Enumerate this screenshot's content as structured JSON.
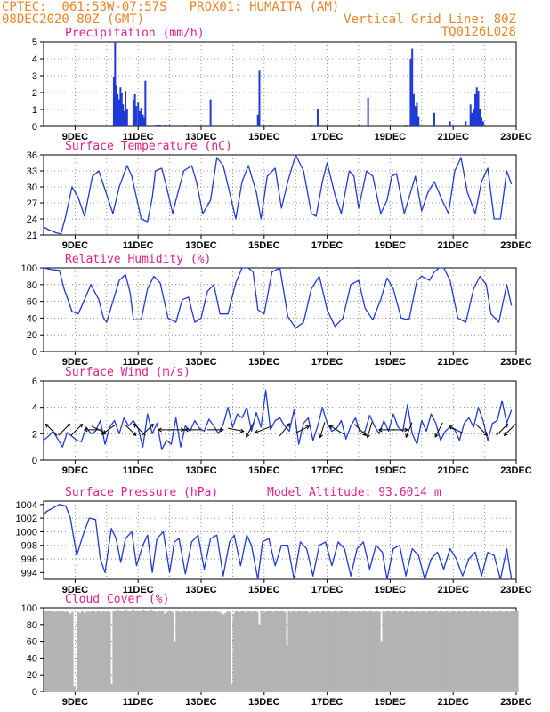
{
  "header": {
    "line1_left": "CPTEC:  061:53W-07:57S   PROX01: HUMAITA (AM)",
    "line2_left": "08DEC2020 80Z (GMT)",
    "line2_right": "Vertical Grid Line: 80Z",
    "line3_right": "TQ0126L028"
  },
  "colors": {
    "header": "#e8862a",
    "title": "#e0208a",
    "line": "#1f3ad6",
    "cloud": "#b3b3b3"
  },
  "x_tick_labels": [
    "9DEC",
    "11DEC",
    "13DEC",
    "15DEC",
    "17DEC",
    "19DEC",
    "21DEC",
    "23DEC"
  ],
  "chart_data": [
    {
      "type": "bar",
      "title": "Precipitation (mm/h)",
      "ylim": [
        0,
        5
      ],
      "yticks": [
        "0",
        "1",
        "2",
        "3",
        "4",
        "5"
      ],
      "x_unit": "day",
      "x": [
        10.23,
        10.27,
        10.31,
        10.35,
        10.39,
        10.44,
        10.48,
        10.52,
        10.56,
        10.6,
        10.65,
        10.85,
        10.9,
        10.94,
        11.0,
        11.05,
        11.1,
        11.15,
        11.19,
        11.23,
        11.6,
        11.65,
        11.7,
        11.85,
        12.0,
        12.5,
        12.9,
        13.3,
        14.2,
        14.8,
        14.85,
        15.2,
        16.5,
        16.7,
        18.0,
        18.3,
        19.5,
        19.65,
        19.7,
        19.75,
        19.8,
        19.85,
        19.9,
        20.4,
        20.9,
        21.4,
        21.55,
        21.6,
        21.65,
        21.7,
        21.75,
        21.8,
        21.85,
        21.9,
        21.95
      ],
      "values": [
        2.9,
        5.0,
        2.4,
        1.9,
        1.6,
        2.3,
        2.0,
        1.3,
        0.9,
        2.1,
        1.0,
        1.6,
        1.9,
        1.2,
        1.4,
        0.9,
        1.1,
        0.7,
        0.5,
        2.7,
        0.08,
        0.1,
        0.08,
        0.05,
        0.05,
        0.05,
        0.08,
        1.6,
        0.1,
        0.7,
        3.3,
        0.1,
        0.08,
        1.0,
        0.05,
        1.7,
        0.1,
        4.0,
        4.6,
        1.9,
        1.2,
        1.4,
        0.6,
        0.8,
        0.3,
        0.3,
        1.3,
        0.8,
        1.0,
        1.9,
        2.3,
        2.1,
        1.0,
        0.5,
        0.3
      ]
    },
    {
      "type": "line",
      "title": "Surface Temperature (nC)",
      "ylim": [
        21,
        36
      ],
      "yticks": [
        "21",
        "24",
        "27",
        "30",
        "33",
        "36"
      ],
      "x": [
        8.0,
        8.15,
        8.4,
        8.55,
        8.7,
        8.9,
        9.1,
        9.3,
        9.55,
        9.75,
        9.95,
        10.2,
        10.4,
        10.65,
        10.8,
        11.1,
        11.3,
        11.45,
        11.55,
        11.75,
        11.9,
        12.1,
        12.2,
        12.45,
        12.7,
        12.85,
        13.05,
        13.3,
        13.5,
        13.7,
        13.9,
        14.1,
        14.3,
        14.5,
        14.75,
        14.9,
        15.1,
        15.35,
        15.55,
        15.75,
        16.0,
        16.25,
        16.5,
        16.65,
        16.85,
        17.0,
        17.25,
        17.45,
        17.7,
        17.85,
        18.0,
        18.25,
        18.45,
        18.7,
        18.9,
        19.05,
        19.2,
        19.45,
        19.65,
        19.8,
        20.0,
        20.2,
        20.4,
        20.65,
        20.85,
        21.05,
        21.25,
        21.45,
        21.7,
        21.9,
        22.1,
        22.3,
        22.5,
        22.7,
        22.85
      ],
      "values": [
        22.5,
        22.0,
        21.4,
        21.2,
        24.5,
        30.0,
        28.0,
        24.5,
        32.0,
        33.0,
        29.5,
        25.0,
        30.0,
        34.0,
        32.0,
        24.0,
        23.5,
        28.0,
        33.0,
        33.5,
        30.0,
        25.0,
        27.5,
        33.0,
        34.0,
        31.0,
        25.0,
        27.5,
        35.5,
        34.0,
        29.0,
        24.0,
        31.0,
        34.0,
        29.0,
        24.0,
        32.0,
        33.5,
        26.0,
        31.0,
        36.0,
        33.0,
        25.0,
        24.5,
        31.0,
        34.5,
        28.5,
        25.0,
        33.0,
        32.0,
        26.0,
        33.0,
        32.0,
        25.0,
        27.5,
        32.0,
        32.5,
        25.0,
        29.0,
        32.0,
        25.5,
        29.0,
        31.0,
        27.5,
        25.0,
        33.0,
        35.5,
        29.0,
        25.0,
        31.0,
        33.5,
        24.0,
        24.0,
        33.0,
        30.5
      ]
    },
    {
      "type": "line",
      "title": "Relative Humidity (%)",
      "ylim": [
        0,
        100
      ],
      "yticks": [
        "0",
        "20",
        "40",
        "60",
        "80",
        "100"
      ],
      "x": [
        8.0,
        8.25,
        8.5,
        8.65,
        8.9,
        9.1,
        9.3,
        9.5,
        9.75,
        9.9,
        10.0,
        10.2,
        10.4,
        10.6,
        10.75,
        10.85,
        11.1,
        11.3,
        11.5,
        11.7,
        11.95,
        12.2,
        12.4,
        12.6,
        12.8,
        13.0,
        13.2,
        13.4,
        13.6,
        13.85,
        14.1,
        14.3,
        14.5,
        14.65,
        14.8,
        15.0,
        15.25,
        15.5,
        15.75,
        16.0,
        16.25,
        16.5,
        16.75,
        17.0,
        17.25,
        17.5,
        17.75,
        18.0,
        18.2,
        18.45,
        18.7,
        18.9,
        19.1,
        19.35,
        19.6,
        19.85,
        20.0,
        20.25,
        20.4,
        20.55,
        20.7,
        20.9,
        21.15,
        21.4,
        21.65,
        21.85,
        22.05,
        22.2,
        22.45,
        22.7,
        22.85
      ],
      "values": [
        100,
        98,
        97,
        75,
        48,
        45,
        62,
        80,
        62,
        40,
        35,
        60,
        85,
        92,
        70,
        38,
        38,
        75,
        90,
        82,
        40,
        35,
        62,
        65,
        35,
        40,
        72,
        80,
        45,
        45,
        82,
        100,
        100,
        95,
        50,
        45,
        95,
        100,
        42,
        28,
        35,
        75,
        90,
        50,
        30,
        40,
        80,
        85,
        52,
        38,
        62,
        88,
        75,
        40,
        38,
        85,
        90,
        85,
        95,
        100,
        100,
        85,
        40,
        35,
        75,
        90,
        80,
        45,
        35,
        80,
        55
      ]
    },
    {
      "type": "line",
      "title": "Surface Wind (m/s)",
      "ylim": [
        0,
        6
      ],
      "yticks": [
        "0",
        "2",
        "4",
        "6"
      ],
      "x": [
        8.0,
        8.15,
        8.3,
        8.45,
        8.6,
        8.75,
        8.9,
        9.05,
        9.2,
        9.35,
        9.5,
        9.65,
        9.8,
        9.95,
        10.1,
        10.25,
        10.4,
        10.55,
        10.7,
        10.85,
        11.0,
        11.15,
        11.3,
        11.45,
        11.6,
        11.75,
        11.9,
        12.05,
        12.2,
        12.35,
        12.5,
        12.65,
        12.8,
        12.95,
        13.1,
        13.25,
        13.4,
        13.55,
        13.7,
        13.85,
        14.0,
        14.15,
        14.3,
        14.45,
        14.6,
        14.75,
        14.9,
        15.05,
        15.2,
        15.35,
        15.5,
        15.65,
        15.8,
        15.95,
        16.1,
        16.25,
        16.4,
        16.55,
        16.7,
        16.85,
        17.0,
        17.15,
        17.3,
        17.45,
        17.6,
        17.75,
        17.9,
        18.05,
        18.2,
        18.35,
        18.5,
        18.65,
        18.8,
        18.95,
        19.1,
        19.25,
        19.4,
        19.55,
        19.7,
        19.85,
        20.0,
        20.15,
        20.3,
        20.45,
        20.6,
        20.75,
        20.9,
        21.05,
        21.2,
        21.35,
        21.5,
        21.65,
        21.8,
        21.95,
        22.1,
        22.25,
        22.4,
        22.55,
        22.7,
        22.85
      ],
      "values": [
        1.5,
        1.8,
        2.2,
        1.6,
        1.0,
        2.1,
        1.8,
        1.5,
        1.4,
        2.5,
        2.0,
        2.2,
        3.0,
        1.2,
        2.5,
        3.0,
        2.0,
        3.2,
        2.6,
        3.0,
        2.4,
        1.0,
        3.5,
        2.0,
        2.8,
        0.8,
        1.5,
        1.2,
        3.2,
        1.0,
        2.6,
        2.2,
        3.0,
        2.4,
        2.2,
        3.1,
        2.6,
        2.0,
        2.7,
        4.0,
        2.5,
        3.5,
        3.2,
        4.0,
        2.2,
        3.6,
        2.5,
        5.3,
        2.3,
        3.0,
        3.2,
        2.6,
        2.2,
        3.8,
        1.2,
        2.8,
        3.2,
        1.5,
        2.6,
        4.0,
        2.8,
        2.2,
        2.4,
        3.0,
        1.6,
        2.6,
        3.2,
        2.0,
        2.2,
        3.4,
        2.6,
        2.0,
        3.0,
        2.2,
        3.5,
        2.5,
        2.2,
        4.2,
        2.0,
        1.2,
        3.0,
        2.2,
        3.5,
        2.8,
        1.5,
        2.2,
        2.5,
        2.3,
        1.5,
        2.8,
        3.2,
        2.5,
        4.0,
        3.0,
        1.5,
        2.8,
        3.0,
        4.5,
        2.8,
        3.8
      ],
      "arrows": [
        {
          "x": 8.25,
          "dx": -1,
          "dy": 1
        },
        {
          "x": 8.65,
          "dx": 0.6,
          "dy": 0.6
        },
        {
          "x": 9.05,
          "dx": 1,
          "dy": 1
        },
        {
          "x": 9.55,
          "dx": -1,
          "dy": 0
        },
        {
          "x": 9.75,
          "dx": 1,
          "dy": -0.5
        },
        {
          "x": 10.05,
          "dx": -1,
          "dy": -0.7
        },
        {
          "x": 10.75,
          "dx": 1,
          "dy": -1
        },
        {
          "x": 11.05,
          "dx": -1,
          "dy": 1
        },
        {
          "x": 11.3,
          "dx": 1,
          "dy": 1
        },
        {
          "x": 11.9,
          "dx": -1,
          "dy": 0
        },
        {
          "x": 12.2,
          "dx": 1,
          "dy": 0
        },
        {
          "x": 12.75,
          "dx": -1,
          "dy": 0
        },
        {
          "x": 13.45,
          "dx": 1,
          "dy": 0
        },
        {
          "x": 14.1,
          "dx": 1,
          "dy": -0.2
        },
        {
          "x": 14.55,
          "dx": -0.5,
          "dy": -1
        },
        {
          "x": 14.95,
          "dx": -1,
          "dy": -0.4
        },
        {
          "x": 15.65,
          "dx": 0.8,
          "dy": 1
        },
        {
          "x": 16.2,
          "dx": 1,
          "dy": 0.5
        },
        {
          "x": 16.85,
          "dx": -0.3,
          "dy": -1
        },
        {
          "x": 17.3,
          "dx": -0.8,
          "dy": 0.5
        },
        {
          "x": 18.05,
          "dx": 1,
          "dy": -1
        },
        {
          "x": 18.35,
          "dx": -0.3,
          "dy": -1
        },
        {
          "x": 18.9,
          "dx": -1,
          "dy": 0
        },
        {
          "x": 19.3,
          "dx": 1,
          "dy": 0
        },
        {
          "x": 19.6,
          "dx": -0.4,
          "dy": -1
        },
        {
          "x": 20.55,
          "dx": -0.5,
          "dy": -1
        },
        {
          "x": 21.1,
          "dx": -1,
          "dy": 0.5
        },
        {
          "x": 21.9,
          "dx": 1,
          "dy": -1
        },
        {
          "x": 22.55,
          "dx": 1,
          "dy": 1
        },
        {
          "x": 22.8,
          "dx": -1,
          "dy": -1
        }
      ]
    },
    {
      "type": "line",
      "title": "Surface Pressure (hPa)",
      "subtitle": "Model Altitude: 93.6014 m",
      "ylim": [
        993,
        1004.5
      ],
      "yticks": [
        "994",
        "996",
        "998",
        "1000",
        "1002",
        "1004"
      ],
      "x": [
        8.0,
        8.1,
        8.3,
        8.5,
        8.7,
        8.85,
        9.05,
        9.25,
        9.45,
        9.65,
        9.8,
        9.95,
        10.15,
        10.3,
        10.45,
        10.6,
        10.8,
        10.95,
        11.15,
        11.3,
        11.45,
        11.6,
        11.8,
        12.0,
        12.15,
        12.3,
        12.5,
        12.7,
        12.9,
        13.1,
        13.3,
        13.5,
        13.7,
        13.9,
        14.05,
        14.25,
        14.45,
        14.6,
        14.8,
        14.95,
        15.15,
        15.35,
        15.55,
        15.75,
        15.95,
        16.15,
        16.35,
        16.55,
        16.75,
        16.95,
        17.15,
        17.35,
        17.55,
        17.75,
        17.95,
        18.15,
        18.35,
        18.55,
        18.75,
        18.9,
        19.1,
        19.3,
        19.5,
        19.7,
        19.9,
        20.1,
        20.3,
        20.5,
        20.7,
        20.9,
        21.1,
        21.3,
        21.5,
        21.7,
        21.9,
        22.1,
        22.3,
        22.5,
        22.7,
        22.85
      ],
      "values": [
        1002.5,
        1003.0,
        1003.5,
        1004.0,
        1003.8,
        1002.0,
        996.5,
        999.5,
        1002.0,
        1001.8,
        996.0,
        994.0,
        1000.5,
        999.0,
        995.5,
        999.0,
        1000.0,
        995.0,
        998.0,
        999.5,
        994.0,
        999.0,
        1000.0,
        994.0,
        998.5,
        999.0,
        993.8,
        998.5,
        999.5,
        994.5,
        999.0,
        999.5,
        993.5,
        998.5,
        999.5,
        995.0,
        999.5,
        998.0,
        993.0,
        998.5,
        999.0,
        995.0,
        998.0,
        998.0,
        993.0,
        998.5,
        997.5,
        993.5,
        998.0,
        998.5,
        995.0,
        998.5,
        997.5,
        993.5,
        997.5,
        998.5,
        994.5,
        998.0,
        997.0,
        993.0,
        997.5,
        998.0,
        993.5,
        997.5,
        996.5,
        993.0,
        996.0,
        997.0,
        994.5,
        997.5,
        996.0,
        993.5,
        996.0,
        997.0,
        993.5,
        997.0,
        996.5,
        993.0,
        997.5,
        993.0
      ]
    },
    {
      "type": "bar",
      "title": "Cloud Cover (%)",
      "ylim": [
        0,
        100
      ],
      "yticks": [
        "0",
        "20",
        "40",
        "60",
        "80",
        "100"
      ],
      "x_start": 8.0,
      "x_step": 0.0625,
      "values": [
        97,
        97,
        96,
        97,
        96,
        95,
        97,
        96,
        95,
        97,
        95,
        96,
        95,
        93,
        95,
        6,
        2,
        95,
        94,
        97,
        94,
        95,
        96,
        95,
        97,
        96,
        95,
        97,
        96,
        95,
        97,
        95,
        96,
        95,
        9,
        96,
        97,
        98,
        97,
        96,
        97,
        98,
        97,
        96,
        97,
        98,
        96,
        97,
        97,
        96,
        98,
        97,
        96,
        97,
        98,
        97,
        96,
        95,
        97,
        96,
        97,
        93,
        95,
        97,
        96,
        95,
        60,
        97,
        96,
        95,
        97,
        96,
        95,
        97,
        96,
        95,
        97,
        96,
        95,
        97,
        95,
        96,
        95,
        97,
        96,
        95,
        97,
        96,
        95,
        95,
        93,
        92,
        94,
        96,
        95,
        8,
        93,
        97,
        96,
        95,
        97,
        96,
        95,
        97,
        96,
        95,
        97,
        96,
        95,
        80,
        97,
        94,
        95,
        96,
        97,
        96,
        95,
        97,
        96,
        95,
        97,
        96,
        95,
        55,
        96,
        95,
        97,
        96,
        95,
        97,
        96,
        95,
        97,
        96,
        95,
        94,
        96,
        95,
        97,
        96,
        95,
        97,
        96,
        95,
        97,
        96,
        95,
        97,
        96,
        95,
        97,
        96,
        95,
        97,
        96,
        95,
        97,
        96,
        95,
        97,
        96,
        95,
        97,
        96,
        95,
        97,
        96,
        95,
        97,
        96,
        95,
        60,
        96,
        95,
        97,
        96,
        95,
        97,
        96,
        95,
        97,
        96,
        95,
        97,
        96,
        95,
        97,
        96,
        95,
        97,
        96,
        95,
        97,
        96,
        95,
        97,
        96,
        95,
        97,
        96,
        95,
        97,
        96,
        95,
        97,
        96,
        95,
        97,
        96,
        95,
        97,
        96,
        95,
        97,
        96,
        95,
        97,
        96,
        95,
        97,
        96,
        95,
        97,
        96,
        95,
        97,
        96,
        95,
        97,
        96,
        95,
        97,
        96,
        95,
        97,
        96,
        95,
        97,
        96,
        95,
        97,
        96
      ]
    }
  ]
}
